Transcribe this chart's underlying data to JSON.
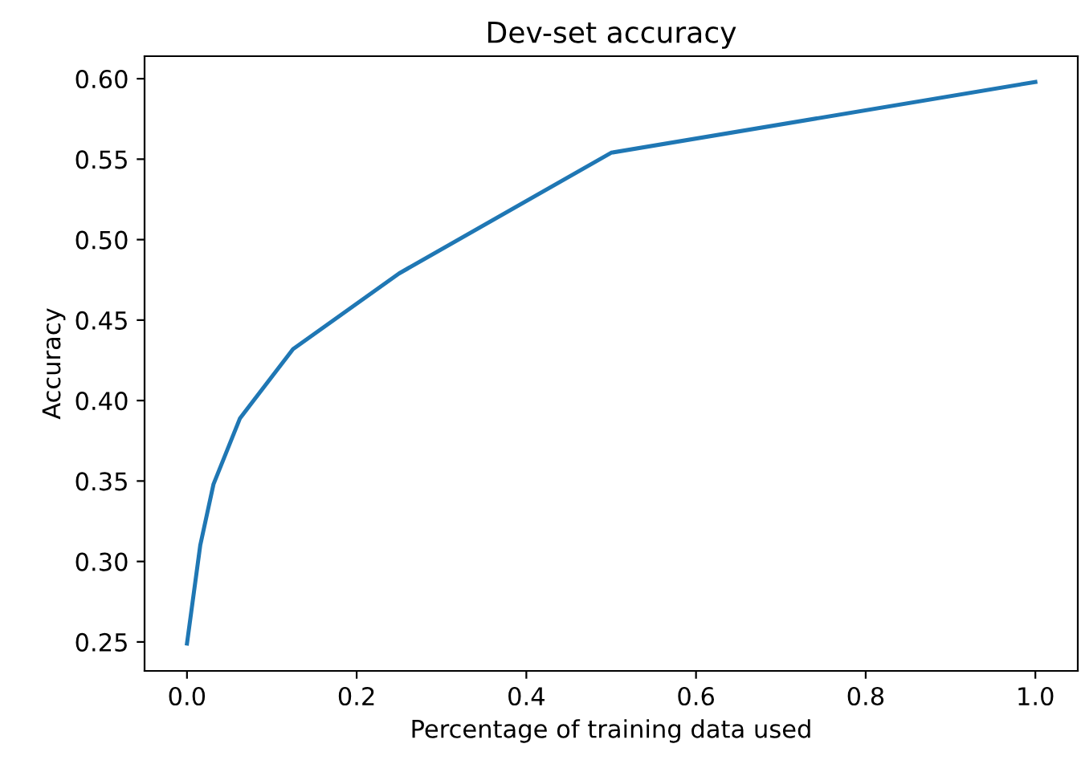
{
  "chart_data": {
    "type": "line",
    "title": "Dev-set accuracy",
    "xlabel": "Percentage of training data used",
    "ylabel": "Accuracy",
    "series": [
      {
        "color": "#1f77b4",
        "x": [
          0.0,
          0.015625,
          0.03125,
          0.0625,
          0.125,
          0.25,
          0.5,
          1.0
        ],
        "values": [
          0.249,
          0.31,
          0.348,
          0.389,
          0.432,
          0.479,
          0.554,
          0.598
        ]
      }
    ],
    "xlim": [
      -0.05,
      1.05
    ],
    "ylim": [
      0.232,
      0.614
    ],
    "xticks": [
      {
        "value": 0,
        "label": "0.0"
      },
      0.2,
      0.4,
      0.6,
      0.8,
      {
        "value": 1,
        "label": "1.0"
      }
    ],
    "yticks": [
      0.25,
      {
        "value": 0.3,
        "label": "0.30"
      },
      0.35,
      {
        "value": 0.4,
        "label": "0.40"
      },
      0.45,
      {
        "value": 0.5,
        "label": "0.50"
      },
      0.55,
      {
        "value": 0.6,
        "label": "0.60"
      }
    ],
    "grid": false,
    "legend": false,
    "line_style": "solid",
    "marker": "none"
  }
}
